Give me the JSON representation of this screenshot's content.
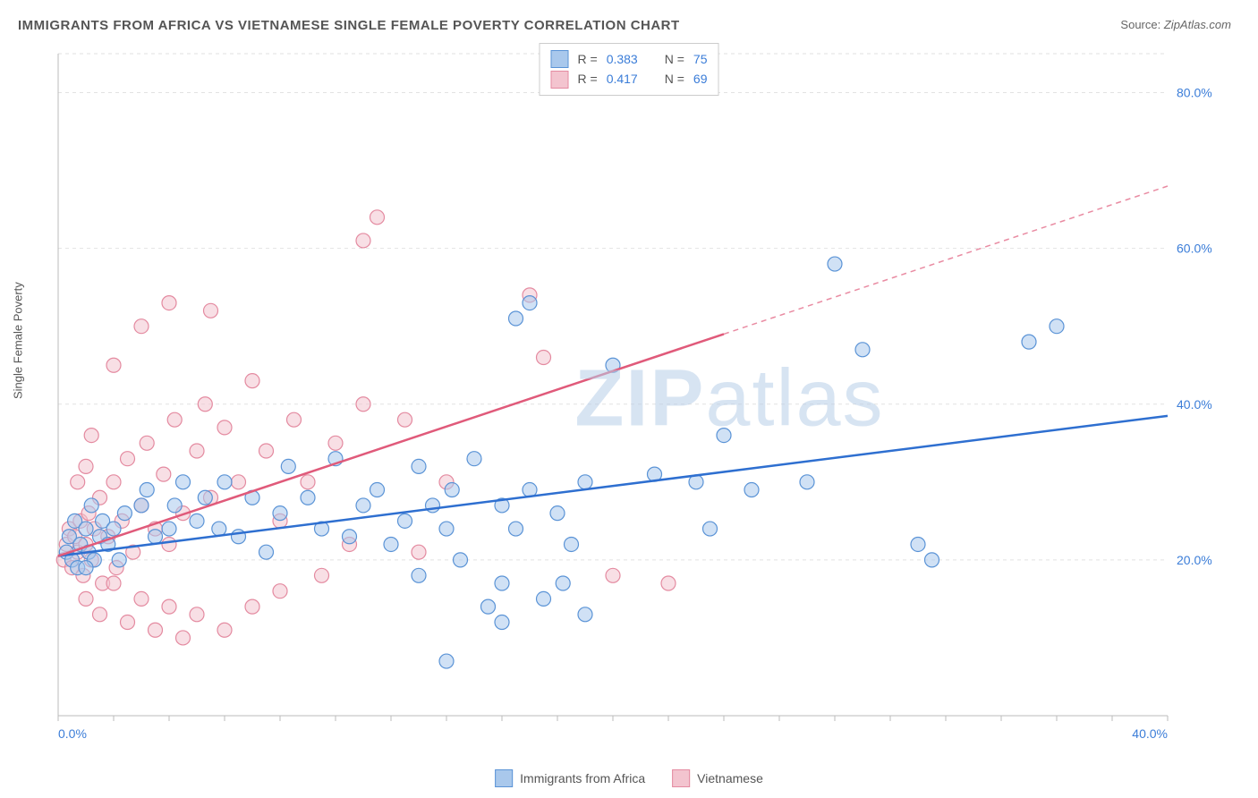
{
  "title": "IMMIGRANTS FROM AFRICA VS VIETNAMESE SINGLE FEMALE POVERTY CORRELATION CHART",
  "source_label": "Source:",
  "source_name": "ZipAtlas.com",
  "ylabel": "Single Female Poverty",
  "watermark": "ZIPatlas",
  "chart": {
    "type": "scatter-with-regression",
    "xlim": [
      0,
      40
    ],
    "ylim": [
      0,
      85
    ],
    "x_ticks": [
      0,
      40
    ],
    "x_tick_labels": [
      "0.0%",
      "40.0%"
    ],
    "y_ticks": [
      20,
      40,
      60,
      80
    ],
    "y_tick_labels": [
      "20.0%",
      "40.0%",
      "60.0%",
      "80.0%"
    ],
    "x_minor_ticks": [
      0,
      2,
      4,
      6,
      8,
      10,
      12,
      14,
      16,
      18,
      20,
      22,
      24,
      26,
      28,
      30,
      32,
      34,
      36,
      38,
      40
    ],
    "grid_color": "#e2e2e2",
    "axis_color": "#bbbbbb",
    "tick_label_color": "#3b7dd8",
    "tick_fontsize": 14,
    "background": "#ffffff",
    "marker_radius": 8,
    "marker_stroke_width": 1.2,
    "line_width": 2.5,
    "series": [
      {
        "id": "africa",
        "label": "Immigrants from Africa",
        "color_fill": "#a9c8ec",
        "color_stroke": "#5a93d6",
        "line_color": "#2e6fd0",
        "R": 0.383,
        "N": 75,
        "regression": {
          "x0": 0,
          "y0": 20.5,
          "x1": 40,
          "y1": 38.5,
          "solid_until_x": 40
        },
        "points": [
          [
            0.3,
            21
          ],
          [
            0.4,
            23
          ],
          [
            0.5,
            20
          ],
          [
            0.6,
            25
          ],
          [
            0.7,
            19
          ],
          [
            0.8,
            22
          ],
          [
            1.0,
            24
          ],
          [
            1.1,
            21
          ],
          [
            1.2,
            27
          ],
          [
            1.3,
            20
          ],
          [
            1.5,
            23
          ],
          [
            1.6,
            25
          ],
          [
            1.8,
            22
          ],
          [
            2.0,
            24
          ],
          [
            2.2,
            20
          ],
          [
            2.4,
            26
          ],
          [
            3.0,
            27
          ],
          [
            3.2,
            29
          ],
          [
            3.5,
            23
          ],
          [
            4.0,
            24
          ],
          [
            4.2,
            27
          ],
          [
            4.5,
            30
          ],
          [
            5.0,
            25
          ],
          [
            5.3,
            28
          ],
          [
            5.8,
            24
          ],
          [
            6.0,
            30
          ],
          [
            6.5,
            23
          ],
          [
            7.0,
            28
          ],
          [
            7.5,
            21
          ],
          [
            8.0,
            26
          ],
          [
            8.3,
            32
          ],
          [
            9.0,
            28
          ],
          [
            9.5,
            24
          ],
          [
            10.0,
            33
          ],
          [
            10.5,
            23
          ],
          [
            11.0,
            27
          ],
          [
            11.5,
            29
          ],
          [
            12.0,
            22
          ],
          [
            12.5,
            25
          ],
          [
            13.0,
            32
          ],
          [
            13.0,
            18
          ],
          [
            13.5,
            27
          ],
          [
            14.0,
            24
          ],
          [
            14.2,
            29
          ],
          [
            14.5,
            20
          ],
          [
            15.0,
            33
          ],
          [
            16.0,
            17
          ],
          [
            16.0,
            27
          ],
          [
            16.5,
            24
          ],
          [
            17.0,
            29
          ],
          [
            17.5,
            15
          ],
          [
            18.0,
            26
          ],
          [
            18.5,
            22
          ],
          [
            19.0,
            30
          ],
          [
            14.0,
            7
          ],
          [
            16.5,
            51
          ],
          [
            17.0,
            53
          ],
          [
            20.0,
            45
          ],
          [
            21.5,
            31
          ],
          [
            23.0,
            30
          ],
          [
            23.5,
            24
          ],
          [
            24.0,
            36
          ],
          [
            25.0,
            29
          ],
          [
            27.0,
            30
          ],
          [
            28.0,
            58
          ],
          [
            29.0,
            47
          ],
          [
            31.0,
            22
          ],
          [
            31.5,
            20
          ],
          [
            35.0,
            48
          ],
          [
            36.0,
            50
          ],
          [
            16.0,
            12
          ],
          [
            18.2,
            17
          ],
          [
            19.0,
            13
          ],
          [
            15.5,
            14
          ],
          [
            1.0,
            19
          ]
        ]
      },
      {
        "id": "vietnamese",
        "label": "Vietnamese",
        "color_fill": "#f3c4cf",
        "color_stroke": "#e48aa0",
        "line_color": "#e05a7a",
        "R": 0.417,
        "N": 69,
        "regression": {
          "x0": 0,
          "y0": 20.5,
          "x1": 40,
          "y1": 68,
          "solid_until_x": 24
        },
        "points": [
          [
            0.2,
            20
          ],
          [
            0.3,
            22
          ],
          [
            0.4,
            24
          ],
          [
            0.5,
            19
          ],
          [
            0.6,
            23
          ],
          [
            0.7,
            21
          ],
          [
            0.8,
            25
          ],
          [
            0.9,
            18
          ],
          [
            1.0,
            22
          ],
          [
            1.1,
            26
          ],
          [
            1.2,
            20
          ],
          [
            1.3,
            24
          ],
          [
            1.5,
            28
          ],
          [
            1.6,
            17
          ],
          [
            1.8,
            23
          ],
          [
            2.0,
            30
          ],
          [
            2.1,
            19
          ],
          [
            2.3,
            25
          ],
          [
            2.5,
            33
          ],
          [
            2.7,
            21
          ],
          [
            3.0,
            27
          ],
          [
            3.2,
            35
          ],
          [
            3.5,
            24
          ],
          [
            3.8,
            31
          ],
          [
            4.0,
            22
          ],
          [
            4.2,
            38
          ],
          [
            4.5,
            26
          ],
          [
            5.0,
            34
          ],
          [
            5.3,
            40
          ],
          [
            5.5,
            28
          ],
          [
            6.0,
            37
          ],
          [
            6.5,
            30
          ],
          [
            7.0,
            43
          ],
          [
            7.5,
            34
          ],
          [
            8.0,
            25
          ],
          [
            8.5,
            38
          ],
          [
            9.0,
            30
          ],
          [
            10.0,
            35
          ],
          [
            10.5,
            22
          ],
          [
            11.0,
            40
          ],
          [
            4.0,
            53
          ],
          [
            5.5,
            52
          ],
          [
            11.0,
            61
          ],
          [
            11.5,
            64
          ],
          [
            12.5,
            38
          ],
          [
            13.0,
            21
          ],
          [
            14.0,
            30
          ],
          [
            17.0,
            54
          ],
          [
            17.5,
            46
          ],
          [
            1.0,
            15
          ],
          [
            1.5,
            13
          ],
          [
            2.0,
            17
          ],
          [
            2.5,
            12
          ],
          [
            3.0,
            15
          ],
          [
            3.5,
            11
          ],
          [
            4.0,
            14
          ],
          [
            4.5,
            10
          ],
          [
            5.0,
            13
          ],
          [
            6.0,
            11
          ],
          [
            7.0,
            14
          ],
          [
            1.0,
            32
          ],
          [
            2.0,
            45
          ],
          [
            3.0,
            50
          ],
          [
            0.7,
            30
          ],
          [
            1.2,
            36
          ],
          [
            20.0,
            18
          ],
          [
            22.0,
            17
          ],
          [
            9.5,
            18
          ],
          [
            8.0,
            16
          ]
        ]
      }
    ],
    "stat_legend_labels": {
      "R": "R =",
      "N": "N ="
    }
  }
}
